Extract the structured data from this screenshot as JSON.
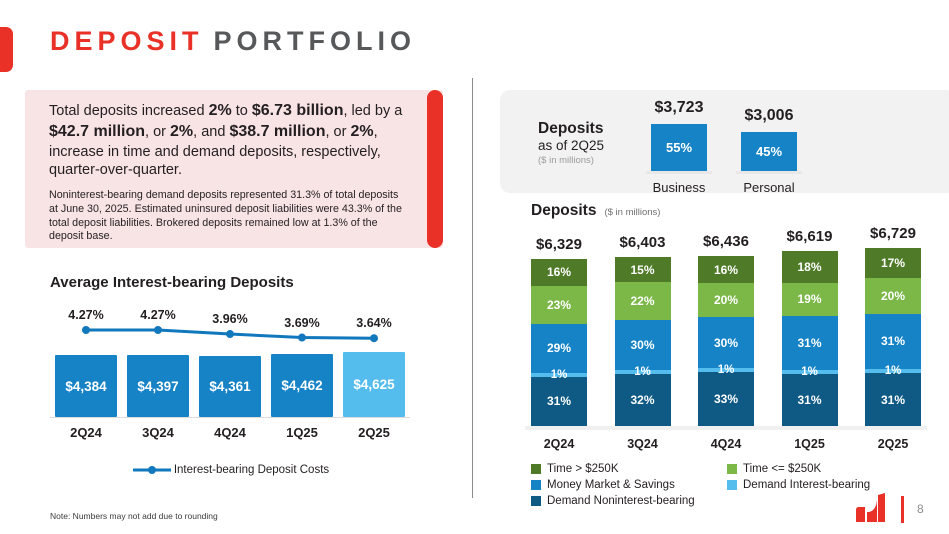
{
  "header": {
    "title_red": "DEPOSIT",
    "title_rest": "PORTFOLIO"
  },
  "summary": {
    "s1": "Total deposits increased ",
    "b1": "2%",
    "s2": " to ",
    "b2": "$6.73 billion",
    "s3": ", led by a ",
    "b3": "$42.7 million",
    "s4": ", or ",
    "b4": "2%",
    "s5": ", and ",
    "b5": "$38.7 million",
    "s6": ", or ",
    "b6": "2%",
    "s7": ", increase in time and demand deposits, respectively, quarter-over-quarter.",
    "subnote": "Noninterest-bearing demand deposits represented 31.3% of total deposits at June 30, 2025. Estimated uninsured deposit liabilities were 43.3% of the total deposit liabilities. Brokered deposits remained low at 1.3% of the deposit base."
  },
  "footer": {
    "note": "Note: Numbers may not add due to rounding",
    "page_number": "8"
  },
  "colors": {
    "red": "#E93128",
    "pink_box": "#F9E4E5",
    "medium_blue": "#1583C5",
    "light_blue": "#55BCEE",
    "dark_blue": "#0E5A84",
    "light_green": "#7BB848",
    "dark_green": "#4F7A28",
    "panel_gray": "#F2F2F2"
  },
  "chart_data": [
    {
      "id": "deposits_by_customer",
      "type": "bar",
      "title": "Deposits",
      "subtitle": "as of 2Q25",
      "units": "($ in millions)",
      "categories": [
        "Business",
        "Personal"
      ],
      "values": [
        3723,
        3006
      ],
      "totals_labels": [
        "$3,723",
        "$3,006"
      ],
      "share_values": [
        55,
        45
      ],
      "bar_labels": [
        "55%",
        "45%"
      ],
      "bar_color": "#1583C5"
    },
    {
      "id": "avg_interest_bearing_deposits",
      "type": "bar+line",
      "title": "Average Interest-bearing Deposits",
      "categories": [
        "2Q24",
        "3Q24",
        "4Q24",
        "1Q25",
        "2Q25"
      ],
      "bar_values": [
        4384,
        4397,
        4361,
        4462,
        4625
      ],
      "bar_labels": [
        "$4,384",
        "$4,397",
        "$4,361",
        "$4,462",
        "$4,625"
      ],
      "bar_colors": [
        "#1583C5",
        "#1583C5",
        "#1583C5",
        "#1583C5",
        "#55BCEE"
      ],
      "line_name": "Interest-bearing Deposit Costs",
      "line_values": [
        4.27,
        4.27,
        3.96,
        3.69,
        3.64
      ],
      "line_labels": [
        "4.27%",
        "4.27%",
        "3.96%",
        "3.69%",
        "3.64%"
      ],
      "line_color": "#1278BE"
    },
    {
      "id": "deposit_mix",
      "type": "stacked-bar",
      "title": "Deposits",
      "units": "($ in millions)",
      "categories": [
        "2Q24",
        "3Q24",
        "4Q24",
        "1Q25",
        "2Q25"
      ],
      "totals": [
        6329,
        6403,
        6436,
        6619,
        6729
      ],
      "totals_labels": [
        "$6,329",
        "$6,403",
        "$6,436",
        "$6,619",
        "$6,729"
      ],
      "series": [
        {
          "name": "Demand Noninterest-bearing",
          "color": "#0E5A84",
          "values": [
            31,
            32,
            33,
            31,
            31
          ]
        },
        {
          "name": "Demand Interest-bearing",
          "color": "#55BCEE",
          "values": [
            1,
            1,
            1,
            1,
            1
          ]
        },
        {
          "name": "Money Market & Savings",
          "color": "#1583C5",
          "values": [
            29,
            30,
            30,
            31,
            31
          ]
        },
        {
          "name": "Time <= $250K",
          "color": "#7BB848",
          "values": [
            23,
            22,
            20,
            19,
            20
          ]
        },
        {
          "name": "Time > $250K",
          "color": "#4F7A28",
          "values": [
            16,
            15,
            16,
            18,
            17
          ]
        }
      ],
      "legend_position": "bottom"
    }
  ]
}
